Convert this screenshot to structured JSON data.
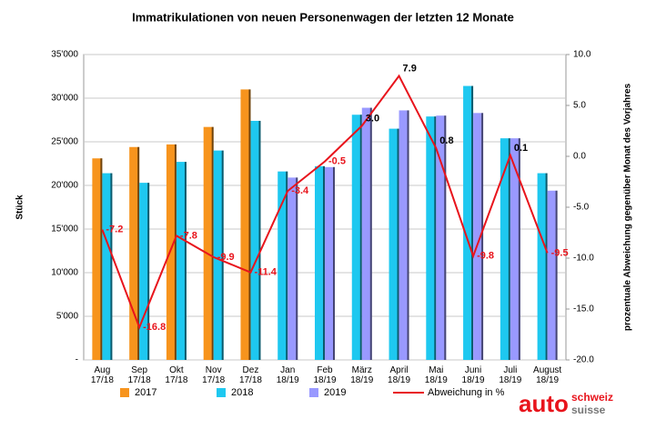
{
  "chart_data": {
    "type": "bar-line",
    "title": "Immatrikulationen von neuen Personenwagen der letzten 12 Monate",
    "y_label": "Stück",
    "y2_label": "prozentuale Abweichung gegenüber Monat des Vorjahres",
    "categories": [
      "Aug\n17/18",
      "Sep\n17/18",
      "Okt\n17/18",
      "Nov\n17/18",
      "Dez\n17/18",
      "Jan\n18/19",
      "Feb\n18/19",
      "März\n18/19",
      "April\n18/19",
      "Mai\n18/19",
      "Juni\n18/19",
      "Juli\n18/19",
      "August\n18/19"
    ],
    "series": [
      {
        "name": "2017",
        "color": "#f7941d",
        "values": [
          23100,
          24400,
          24700,
          26700,
          31000,
          null,
          null,
          null,
          null,
          null,
          null,
          null,
          null
        ]
      },
      {
        "name": "2018",
        "color": "#1ec8f0",
        "values": [
          21400,
          20300,
          22700,
          24000,
          27400,
          21600,
          22200,
          28100,
          26500,
          27900,
          31400,
          25400,
          21400
        ]
      },
      {
        "name": "2019",
        "color": "#9999ff",
        "values": [
          null,
          null,
          null,
          null,
          null,
          20900,
          22100,
          28900,
          28600,
          28000,
          28300,
          25400,
          19400
        ]
      },
      {
        "name": "Abweichung in %",
        "color": "#e8141c",
        "axis": "y2",
        "values": [
          -7.2,
          -16.8,
          -7.8,
          -9.9,
          -11.4,
          -3.4,
          -0.5,
          3.0,
          7.9,
          0.8,
          -9.8,
          0.1,
          -9.5
        ],
        "value_labels": [
          "-7.2",
          "-16.8",
          "-7.8",
          "-9.9",
          "-11.4",
          "-3.4",
          "-0.5",
          "3.0",
          "7.9",
          "0.8",
          "-9.8",
          "0.1",
          "-9.5"
        ]
      }
    ],
    "ylim": [
      0,
      35000
    ],
    "yticks": [
      {
        "value": 0,
        "label": "-"
      },
      {
        "value": 5000,
        "label": "5'000"
      },
      {
        "value": 10000,
        "label": "10'000"
      },
      {
        "value": 15000,
        "label": "15'000"
      },
      {
        "value": 20000,
        "label": "20'000"
      },
      {
        "value": 25000,
        "label": "25'000"
      },
      {
        "value": 30000,
        "label": "30'000"
      },
      {
        "value": 35000,
        "label": "35'000"
      }
    ],
    "y2lim": [
      -20,
      10
    ],
    "y2ticks": [
      {
        "value": -20,
        "label": "-20.0"
      },
      {
        "value": -15,
        "label": "-15.0"
      },
      {
        "value": -10,
        "label": "-10.0"
      },
      {
        "value": -5,
        "label": "-5.0"
      },
      {
        "value": 0,
        "label": "0.0"
      },
      {
        "value": 5,
        "label": "5.0"
      },
      {
        "value": 10,
        "label": "10.0"
      }
    ],
    "grid": true,
    "legend": "bottom"
  },
  "logo": {
    "brand": "auto",
    "line1": "schweiz",
    "line2": "suisse"
  }
}
